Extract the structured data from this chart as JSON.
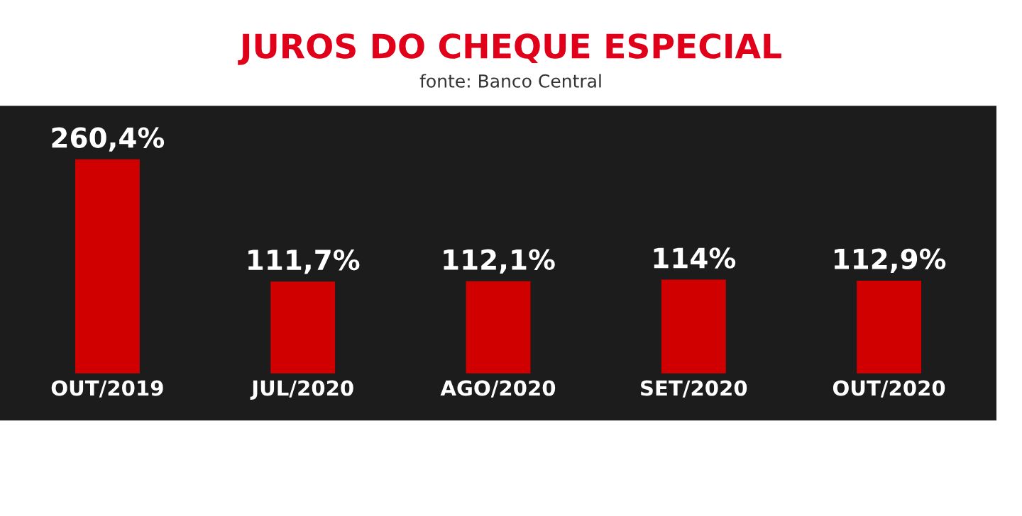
{
  "chart_data": {
    "type": "bar",
    "title": "JUROS DO CHEQUE ESPECIAL",
    "subtitle": "fonte: Banco Central",
    "categories": [
      "OUT/2019",
      "JUL/2020",
      "AGO/2020",
      "SET/2020",
      "OUT/2020"
    ],
    "values": [
      260.4,
      111.7,
      112.1,
      114,
      112.9
    ],
    "value_labels": [
      "260,4%",
      "111,7%",
      "112,1%",
      "114%",
      "112,9%"
    ],
    "color": "#d10000"
  }
}
